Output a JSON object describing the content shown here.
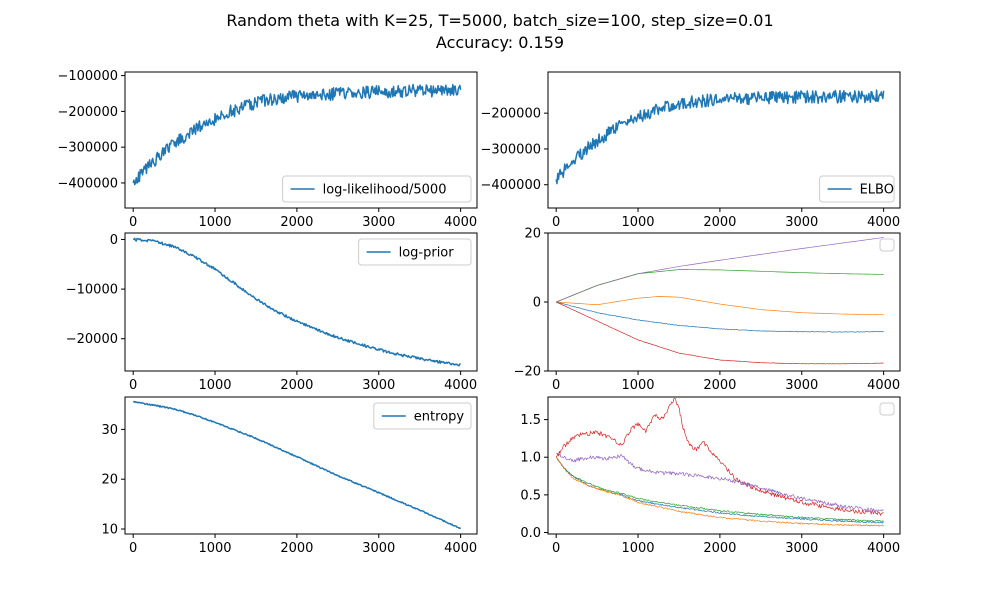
{
  "figure": {
    "title_line1": "Random theta with K=25, T=5000, batch_size=100, step_size=0.01",
    "title_line2": "Accuracy: 0.159"
  },
  "colors": {
    "blue": "#1f77b4",
    "orange": "#ff7f0e",
    "green": "#2ca02c",
    "red": "#d62728",
    "purple": "#9467bd",
    "gray": "#7f7f7f"
  },
  "chart_data": [
    {
      "id": "loglik",
      "type": "line",
      "xlim": [
        -100,
        4200
      ],
      "ylim": [
        -470000,
        -90000
      ],
      "xticks": [
        0,
        1000,
        2000,
        3000,
        4000
      ],
      "xtick_labels": [
        "0",
        "1000",
        "2000",
        "3000",
        "4000"
      ],
      "yticks": [
        -400000,
        -300000,
        -200000,
        -100000
      ],
      "ytick_labels": [
        "−400000",
        "−300000",
        "−200000",
        "−100000"
      ],
      "legend": {
        "placement": "lower-right",
        "entries": [
          "log-likelihood/5000"
        ]
      },
      "series": [
        {
          "name": "log-likelihood/5000",
          "color": "#1f77b4",
          "width": 1.5,
          "noise": 18000,
          "seed": 11,
          "x": [
            0,
            200,
            400,
            600,
            800,
            1000,
            1200,
            1400,
            1600,
            1800,
            2000,
            2500,
            3000,
            3500,
            4000
          ],
          "y": [
            -400000,
            -350000,
            -310000,
            -275000,
            -245000,
            -220000,
            -200000,
            -185000,
            -170000,
            -162000,
            -157000,
            -150000,
            -145000,
            -142000,
            -140000
          ]
        }
      ]
    },
    {
      "id": "elbo",
      "type": "line",
      "xlim": [
        -100,
        4200
      ],
      "ylim": [
        -465000,
        -85000
      ],
      "xticks": [
        0,
        1000,
        2000,
        3000,
        4000
      ],
      "xtick_labels": [
        "0",
        "1000",
        "2000",
        "3000",
        "4000"
      ],
      "yticks": [
        -400000,
        -300000,
        -200000
      ],
      "ytick_labels": [
        "−400000",
        "−300000",
        "−200000"
      ],
      "legend": {
        "placement": "lower-right",
        "entries": [
          "ELBO"
        ]
      },
      "series": [
        {
          "name": "ELBO",
          "color": "#1f77b4",
          "width": 1.5,
          "noise": 18000,
          "seed": 23,
          "x": [
            0,
            200,
            400,
            600,
            800,
            1000,
            1200,
            1400,
            1600,
            1800,
            2000,
            2500,
            3000,
            3500,
            4000
          ],
          "y": [
            -385000,
            -335000,
            -295000,
            -262000,
            -235000,
            -212000,
            -195000,
            -180000,
            -170000,
            -165000,
            -160000,
            -157000,
            -155000,
            -154000,
            -153000
          ]
        }
      ]
    },
    {
      "id": "logprior",
      "type": "line",
      "xlim": [
        -100,
        4200
      ],
      "ylim": [
        -26500,
        1300
      ],
      "xticks": [
        0,
        1000,
        2000,
        3000,
        4000
      ],
      "xtick_labels": [
        "0",
        "1000",
        "2000",
        "3000",
        "4000"
      ],
      "yticks": [
        -20000,
        -10000,
        0
      ],
      "ytick_labels": [
        "−20000",
        "−10000",
        "0"
      ],
      "legend": {
        "placement": "upper-right",
        "entries": [
          "log-prior"
        ]
      },
      "series": [
        {
          "name": "log-prior",
          "color": "#1f77b4",
          "width": 1.5,
          "noise": 250,
          "seed": 37,
          "x": [
            0,
            250,
            500,
            750,
            1000,
            1250,
            1500,
            1750,
            2000,
            2250,
            2500,
            2750,
            3000,
            3250,
            3500,
            3750,
            4000
          ],
          "y": [
            0,
            -300,
            -1500,
            -3500,
            -6000,
            -9000,
            -12000,
            -14500,
            -16500,
            -18200,
            -19800,
            -21000,
            -22200,
            -23200,
            -24000,
            -24700,
            -25300
          ]
        }
      ]
    },
    {
      "id": "means",
      "type": "line",
      "xlim": [
        -100,
        4200
      ],
      "ylim": [
        -20,
        20
      ],
      "xticks": [
        0,
        1000,
        2000,
        3000,
        4000
      ],
      "xtick_labels": [
        "0",
        "1000",
        "2000",
        "3000",
        "4000"
      ],
      "yticks": [
        -20,
        0,
        20
      ],
      "ytick_labels": [
        "−20",
        "0",
        "20"
      ],
      "legend": {
        "placement": "upper-right",
        "entries": []
      },
      "series": [
        {
          "color": "#9467bd",
          "width": 0.7,
          "noise": 0,
          "seed": 1,
          "x": [
            0,
            500,
            1000,
            1500,
            2000,
            2500,
            3000,
            3500,
            4000
          ],
          "y": [
            0,
            4.8,
            8.2,
            10.3,
            12.1,
            13.8,
            15.5,
            17.1,
            18.7
          ]
        },
        {
          "color": "#2ca02c",
          "width": 0.7,
          "noise": 0,
          "seed": 2,
          "x": [
            0,
            500,
            1000,
            1500,
            2000,
            2500,
            3000,
            3500,
            4000
          ],
          "y": [
            0,
            4.8,
            8.2,
            9.4,
            9.3,
            8.9,
            8.5,
            8.2,
            8.0
          ]
        },
        {
          "color": "#7f7f7f",
          "width": 0.7,
          "noise": 0,
          "seed": 3,
          "x": [
            0,
            500,
            1000
          ],
          "y": [
            0,
            4.8,
            8.2
          ]
        },
        {
          "color": "#ff7f0e",
          "width": 0.7,
          "noise": 0,
          "seed": 4,
          "x": [
            0,
            500,
            1000,
            1250,
            1500,
            2000,
            2500,
            3000,
            3500,
            4000
          ],
          "y": [
            0,
            -0.8,
            1.1,
            1.6,
            1.4,
            -0.6,
            -2.2,
            -3.1,
            -3.5,
            -3.7
          ]
        },
        {
          "color": "#1f77b4",
          "width": 0.7,
          "noise": 0.08,
          "seed": 5,
          "x": [
            0,
            500,
            1000,
            1500,
            2000,
            2500,
            3000,
            3500,
            4000
          ],
          "y": [
            0,
            -3.1,
            -5.2,
            -6.8,
            -7.8,
            -8.4,
            -8.6,
            -8.7,
            -8.6
          ]
        },
        {
          "color": "#d62728",
          "width": 0.7,
          "noise": 0.05,
          "seed": 6,
          "x": [
            0,
            500,
            1000,
            1500,
            2000,
            2500,
            3000,
            3500,
            4000
          ],
          "y": [
            0,
            -5.5,
            -11.0,
            -14.8,
            -16.8,
            -17.6,
            -17.9,
            -17.9,
            -17.7
          ]
        }
      ]
    },
    {
      "id": "entropy",
      "type": "line",
      "xlim": [
        -100,
        4200
      ],
      "ylim": [
        9,
        36.5
      ],
      "xticks": [
        0,
        1000,
        2000,
        3000,
        4000
      ],
      "xtick_labels": [
        "0",
        "1000",
        "2000",
        "3000",
        "4000"
      ],
      "yticks": [
        10,
        20,
        30
      ],
      "ytick_labels": [
        "10",
        "20",
        "30"
      ],
      "legend": {
        "placement": "upper-right",
        "entries": [
          "entropy"
        ]
      },
      "series": [
        {
          "name": "entropy",
          "color": "#1f77b4",
          "width": 1.5,
          "noise": 0.12,
          "seed": 7,
          "x": [
            0,
            200,
            500,
            800,
            1000,
            1500,
            2000,
            2500,
            3000,
            3500,
            4000
          ],
          "y": [
            35.6,
            35.0,
            34.1,
            32.6,
            31.4,
            28.2,
            24.5,
            20.7,
            17.3,
            13.8,
            10.1
          ]
        }
      ]
    },
    {
      "id": "stds",
      "type": "line",
      "xlim": [
        -100,
        4200
      ],
      "ylim": [
        -0.02,
        1.8
      ],
      "xticks": [
        0,
        1000,
        2000,
        3000,
        4000
      ],
      "xtick_labels": [
        "0",
        "1000",
        "2000",
        "3000",
        "4000"
      ],
      "yticks": [
        0.0,
        0.5,
        1.0,
        1.5
      ],
      "ytick_labels": [
        "0.0",
        "0.5",
        "1.0",
        "1.5"
      ],
      "legend": {
        "placement": "upper-right",
        "entries": []
      },
      "series": [
        {
          "color": "#d62728",
          "width": 0.7,
          "noise": 0.03,
          "seed": 8,
          "x": [
            0,
            100,
            200,
            300,
            500,
            700,
            800,
            900,
            1000,
            1100,
            1200,
            1300,
            1400,
            1450,
            1500,
            1550,
            1600,
            1700,
            1800,
            1900,
            2000,
            2200,
            2500,
            3000,
            3500,
            4000
          ],
          "y": [
            1.0,
            1.15,
            1.25,
            1.3,
            1.33,
            1.25,
            1.15,
            1.35,
            1.45,
            1.35,
            1.55,
            1.5,
            1.7,
            1.77,
            1.65,
            1.4,
            1.2,
            1.1,
            1.2,
            1.05,
            0.95,
            0.7,
            0.55,
            0.4,
            0.3,
            0.25
          ]
        },
        {
          "color": "#9467bd",
          "width": 0.7,
          "noise": 0.025,
          "seed": 9,
          "x": [
            0,
            100,
            200,
            400,
            600,
            800,
            900,
            1000,
            1200,
            1500,
            2000,
            2500,
            3000,
            3500,
            4000
          ],
          "y": [
            1.05,
            1.0,
            0.95,
            1.0,
            0.98,
            1.02,
            0.92,
            0.85,
            0.8,
            0.78,
            0.72,
            0.6,
            0.45,
            0.35,
            0.28
          ]
        },
        {
          "color": "#2ca02c",
          "width": 0.7,
          "noise": 0.01,
          "seed": 10,
          "x": [
            0,
            100,
            200,
            400,
            600,
            800,
            1000,
            1500,
            2000,
            2500,
            3000,
            3500,
            4000
          ],
          "y": [
            1.0,
            0.85,
            0.75,
            0.65,
            0.57,
            0.52,
            0.45,
            0.36,
            0.29,
            0.24,
            0.2,
            0.17,
            0.15
          ]
        },
        {
          "color": "#1f77b4",
          "width": 0.7,
          "noise": 0.01,
          "seed": 12,
          "x": [
            0,
            100,
            200,
            400,
            600,
            800,
            1000,
            1500,
            2000,
            2500,
            3000,
            3500,
            4000
          ],
          "y": [
            1.0,
            0.85,
            0.75,
            0.62,
            0.55,
            0.5,
            0.42,
            0.33,
            0.26,
            0.21,
            0.18,
            0.15,
            0.13
          ]
        },
        {
          "color": "#ff7f0e",
          "width": 0.7,
          "noise": 0.01,
          "seed": 13,
          "x": [
            0,
            100,
            200,
            400,
            600,
            800,
            1000,
            1500,
            2000,
            2500,
            3000,
            3500,
            4000
          ],
          "y": [
            1.0,
            0.85,
            0.72,
            0.62,
            0.55,
            0.49,
            0.4,
            0.28,
            0.2,
            0.15,
            0.12,
            0.1,
            0.09
          ]
        }
      ]
    }
  ]
}
